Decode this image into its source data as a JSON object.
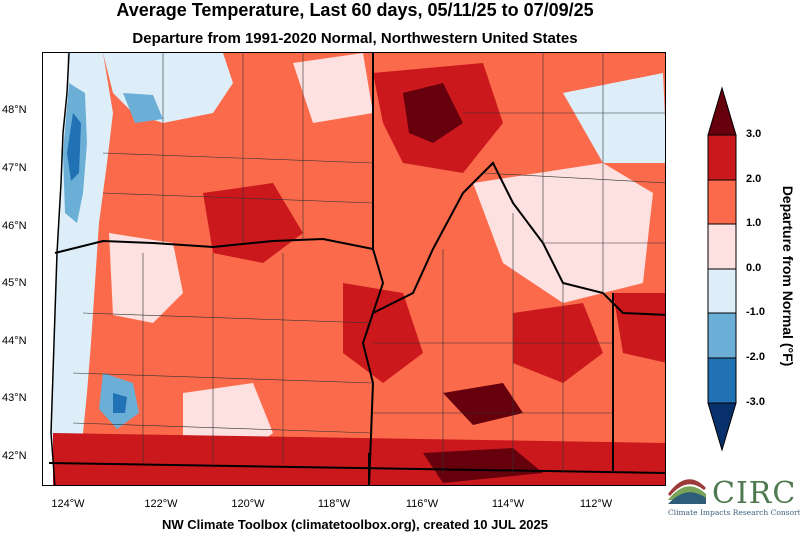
{
  "title": "Average Temperature, Last 60 days, 05/11/25 to 07/09/25",
  "subtitle": "Departure from 1991-2020 Normal, Northwestern United States",
  "footer": "NW Climate Toolbox (climatetoolbox.org), created 10 JUL 2025",
  "map": {
    "lat_ticks": [
      "48°N",
      "47°N",
      "46°N",
      "45°N",
      "44°N",
      "43°N",
      "42°N"
    ],
    "lon_ticks": [
      "124°W",
      "122°W",
      "120°W",
      "118°W",
      "116°W",
      "114°W",
      "112°W"
    ],
    "lat_range": [
      41.5,
      49.0
    ],
    "lon_range": [
      -124.5,
      -110.8
    ]
  },
  "colorbar": {
    "title": "Departure from Normal (°F)",
    "labels": [
      "3.0",
      "2.0",
      "1.0",
      "0.0",
      "-1.0",
      "-2.0",
      "-3.0"
    ],
    "bins": [
      {
        "range": "> 3.0",
        "color": "#67000d"
      },
      {
        "range": "2.0 to 3.0",
        "color": "#cb181d"
      },
      {
        "range": "1.0 to 2.0",
        "color": "#fb6a4a"
      },
      {
        "range": "0.0 to 1.0",
        "color": "#fde0e0"
      },
      {
        "range": "-1.0 to 0.0",
        "color": "#ddeef8"
      },
      {
        "range": "-2.0 to -1.0",
        "color": "#6baed6"
      },
      {
        "range": "-3.0 to -2.0",
        "color": "#2171b5"
      },
      {
        "range": "< -3.0",
        "color": "#08306b"
      }
    ]
  },
  "logo": {
    "name": "CIRC",
    "subtitle": "Climate Impacts Research Consortium"
  }
}
